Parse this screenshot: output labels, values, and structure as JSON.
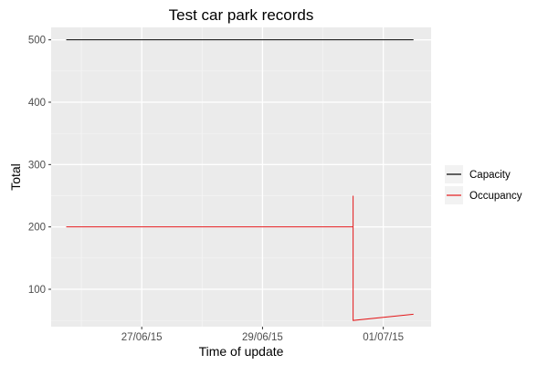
{
  "chart_data": {
    "type": "line",
    "title": "Test car park records",
    "xlabel": "Time of update",
    "ylabel": "Total",
    "x_type": "date",
    "xlim": [
      "2015-06-25T12:00",
      "2015-07-01T19:00"
    ],
    "ylim": [
      40,
      520
    ],
    "x_ticks": [
      {
        "value": "2015-06-27T00:00",
        "label": "27/06/15"
      },
      {
        "value": "2015-06-29T00:00",
        "label": "29/06/15"
      },
      {
        "value": "2015-07-01T00:00",
        "label": "01/07/15"
      }
    ],
    "y_ticks": [
      100,
      200,
      300,
      400,
      500
    ],
    "grid": true,
    "legend_position": "right",
    "series": [
      {
        "name": "Capacity",
        "color": "#000000",
        "points": [
          {
            "x": "2015-06-25T18:00",
            "y": 500
          },
          {
            "x": "2015-07-01T12:00",
            "y": 500
          }
        ]
      },
      {
        "name": "Occupancy",
        "color": "#e41a1c",
        "points": [
          {
            "x": "2015-06-25T18:00",
            "y": 200
          },
          {
            "x": "2015-06-30T12:00",
            "y": 200
          },
          {
            "x": "2015-06-30T12:00",
            "y": 250
          },
          {
            "x": "2015-06-30T12:00",
            "y": 50
          },
          {
            "x": "2015-07-01T12:00",
            "y": 60
          }
        ]
      }
    ]
  }
}
